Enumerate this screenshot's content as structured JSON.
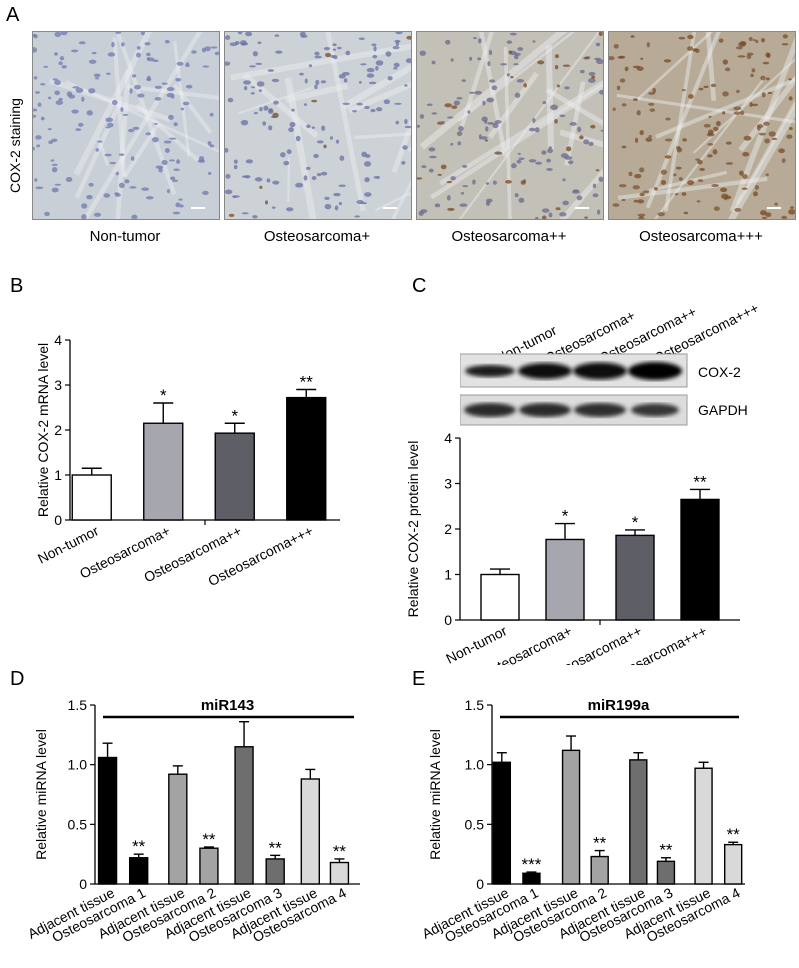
{
  "panels": {
    "a": "A",
    "b": "B",
    "c": "C",
    "d": "D",
    "e": "E"
  },
  "panel_a": {
    "ylabel": "COX-2 staining",
    "images": [
      {
        "caption": "Non-tumor",
        "bg": "#c9cfd6",
        "cell": "#6f7ab0",
        "brown": 0
      },
      {
        "caption": "Osteosarcoma+",
        "bg": "#cdd2d6",
        "cell": "#6a6fa6",
        "brown": 0.05
      },
      {
        "caption": "Osteosarcoma++",
        "bg": "#c3c0b8",
        "cell": "#6b6a8e",
        "brown": 0.2
      },
      {
        "caption": "Osteosarcoma+++",
        "bg": "#b7ab98",
        "cell": "#7b5436",
        "brown": 0.55
      }
    ]
  },
  "panel_c_blot": {
    "lanes": [
      "Non-tumor",
      "Osteosarcoma+",
      "Osteosarcoma++",
      "Osteosarcoma+++"
    ],
    "bands": [
      "COX-2",
      "GAPDH"
    ]
  },
  "chart_data": [
    {
      "id": "B",
      "type": "bar",
      "ylabel": "Relative COX-2 mRNA level",
      "categories": [
        "Non-tumor",
        "Osteosarcoma+",
        "Osteosarcoma++",
        "Osteosarcoma+++"
      ],
      "values": [
        1.0,
        2.15,
        1.93,
        2.72
      ],
      "errors": [
        0.15,
        0.45,
        0.22,
        0.18
      ],
      "sig": [
        "",
        "*",
        "*",
        "**"
      ],
      "colors": [
        "#ffffff",
        "#a6a6ae",
        "#5e5e66",
        "#000000"
      ],
      "ylim": [
        0,
        4
      ],
      "yticks": [
        "0",
        "1",
        "2",
        "3",
        "4"
      ]
    },
    {
      "id": "C",
      "type": "bar",
      "ylabel": "Relative COX-2 protein level",
      "categories": [
        "Non-tumor",
        "Osteosarcoma+",
        "Osteosarcoma++",
        "Osteosarcoma+++"
      ],
      "values": [
        1.0,
        1.77,
        1.86,
        2.65
      ],
      "errors": [
        0.12,
        0.35,
        0.12,
        0.22
      ],
      "sig": [
        "",
        "*",
        "*",
        "**"
      ],
      "colors": [
        "#ffffff",
        "#a6a6ae",
        "#5e5e66",
        "#000000"
      ],
      "ylim": [
        0,
        4
      ],
      "yticks": [
        "0",
        "1",
        "2",
        "3",
        "4"
      ]
    },
    {
      "id": "D",
      "type": "bar",
      "title": "miR143",
      "ylabel": "Relative miRNA level",
      "categories": [
        "Adjacent tissue",
        "Osteosarcoma 1",
        "Adjacent tissue",
        "Osteosarcoma 2",
        "Adjacent tissue",
        "Osteosarcoma 3",
        "Adjacent tissue",
        "Osteosarcoma 4"
      ],
      "values": [
        1.06,
        0.22,
        0.92,
        0.3,
        1.15,
        0.21,
        0.88,
        0.18
      ],
      "errors": [
        0.12,
        0.03,
        0.07,
        0.01,
        0.21,
        0.03,
        0.08,
        0.03
      ],
      "sig": [
        "",
        "**",
        "",
        "**",
        "",
        "**",
        "",
        "**"
      ],
      "colors": [
        "#000000",
        "#000000",
        "#a3a3a3",
        "#a3a3a3",
        "#6e6e6e",
        "#6e6e6e",
        "#d9d9d9",
        "#d9d9d9"
      ],
      "ylim": [
        0,
        1.5
      ],
      "yticks": [
        "0",
        "0.5",
        "1.0",
        "1.5"
      ]
    },
    {
      "id": "E",
      "type": "bar",
      "title": "miR199a",
      "ylabel": "Relative miRNA level",
      "categories": [
        "Adjacent tissue",
        "Osteosarcoma 1",
        "Adjacent tissue",
        "Osteosarcoma 2",
        "Adjacent tissue",
        "Osteosarcoma 3",
        "Adjacent tissue",
        "Osteosarcoma 4"
      ],
      "values": [
        1.02,
        0.09,
        1.12,
        0.23,
        1.04,
        0.19,
        0.97,
        0.33
      ],
      "errors": [
        0.08,
        0.01,
        0.12,
        0.05,
        0.06,
        0.03,
        0.05,
        0.02
      ],
      "sig": [
        "",
        "***",
        "",
        "**",
        "",
        "**",
        "",
        "**"
      ],
      "colors": [
        "#000000",
        "#000000",
        "#a3a3a3",
        "#a3a3a3",
        "#6e6e6e",
        "#6e6e6e",
        "#d9d9d9",
        "#d9d9d9"
      ],
      "ylim": [
        0,
        1.5
      ],
      "yticks": [
        "0",
        "0.5",
        "1.0",
        "1.5"
      ]
    }
  ]
}
